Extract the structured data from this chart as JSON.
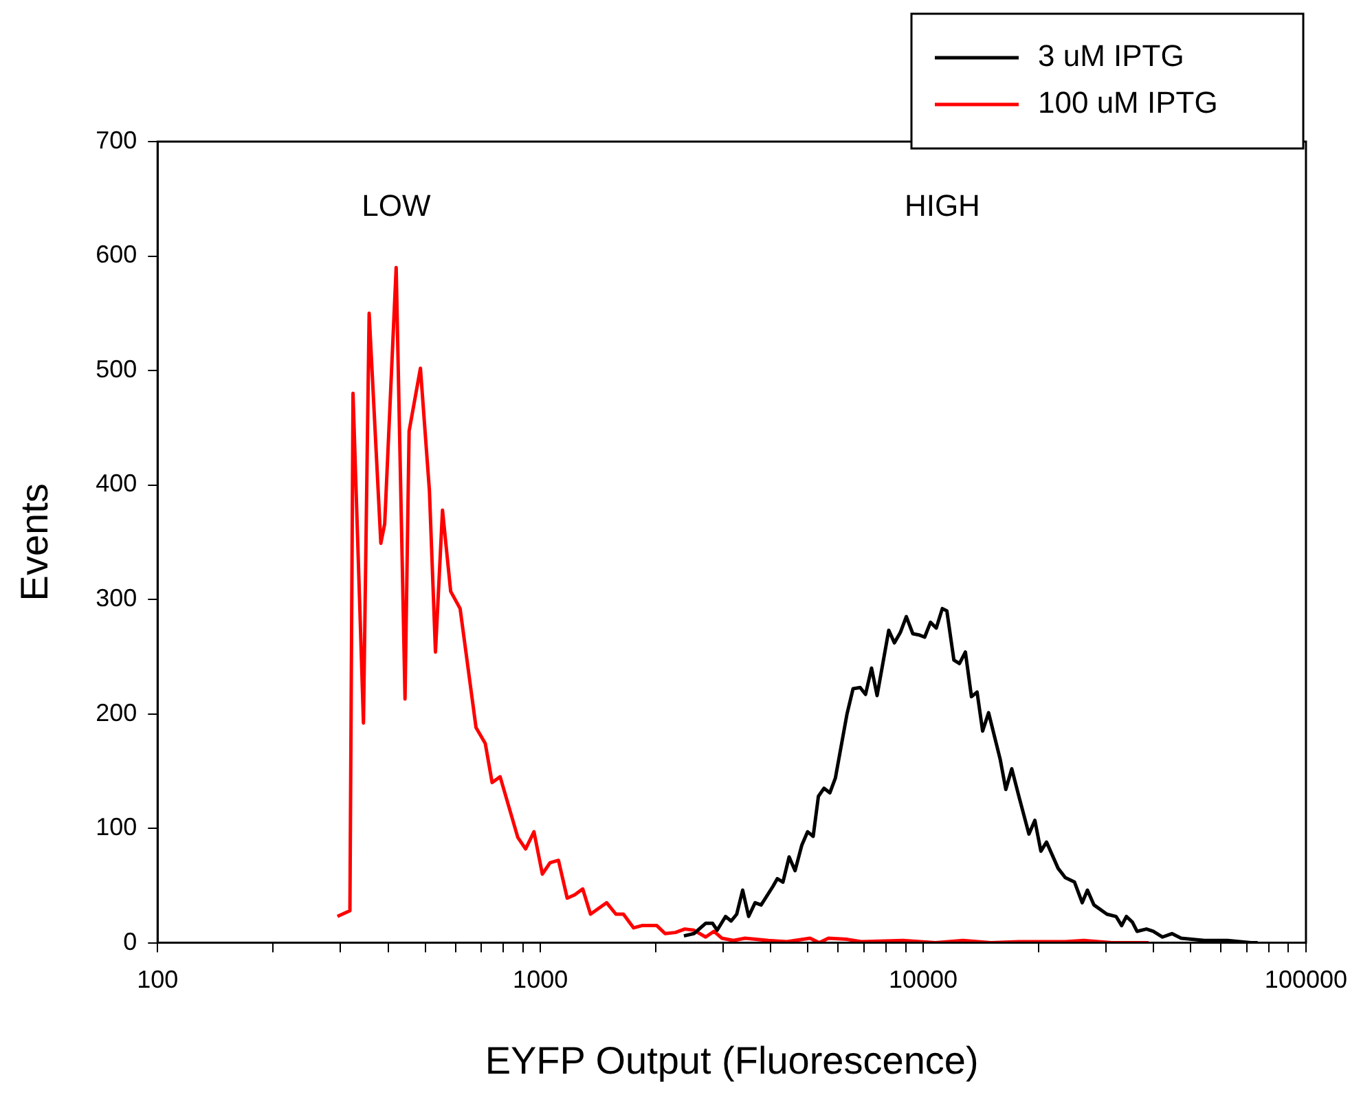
{
  "chart_data": {
    "type": "line",
    "xlabel": "EYFP Output (Fluorescence)",
    "ylabel": "Events",
    "log": "x",
    "xlim": [
      100,
      100000
    ],
    "xticks": [
      100,
      {
        "value": 200,
        "label": null
      },
      {
        "value": 300,
        "label": null
      },
      {
        "value": 400,
        "label": null
      },
      {
        "value": 500,
        "label": null
      },
      {
        "value": 600,
        "label": null
      },
      {
        "value": 700,
        "label": null
      },
      {
        "value": 800,
        "label": null
      },
      {
        "value": 900,
        "label": null
      },
      1000,
      {
        "value": 2000,
        "label": null
      },
      {
        "value": 3000,
        "label": null
      },
      {
        "value": 4000,
        "label": null
      },
      {
        "value": 5000,
        "label": null
      },
      {
        "value": 6000,
        "label": null
      },
      {
        "value": 7000,
        "label": null
      },
      {
        "value": 8000,
        "label": null
      },
      {
        "value": 9000,
        "label": null
      },
      10000,
      {
        "value": 20000,
        "label": null
      },
      {
        "value": 30000,
        "label": null
      },
      {
        "value": 40000,
        "label": null
      },
      {
        "value": 50000,
        "label": null
      },
      {
        "value": 60000,
        "label": null
      },
      {
        "value": 70000,
        "label": null
      },
      {
        "value": 80000,
        "label": null
      },
      {
        "value": 90000,
        "label": null
      },
      100000
    ],
    "ylim": [
      0,
      700
    ],
    "yticks": [
      0,
      100,
      200,
      300,
      400,
      500,
      600,
      700
    ],
    "grid": false,
    "legend": "top right",
    "marker": "none",
    "line_style": "solid",
    "annotations": [
      "LOW",
      "HIGH"
    ],
    "series": [
      {
        "name": "3 uM IPTG",
        "color": "#000000",
        "x": [
          2371,
          2518,
          2702,
          2818,
          2897,
          3047,
          3150,
          3258,
          3376,
          3500,
          3638,
          3773,
          4046,
          4160,
          4302,
          4465,
          4628,
          4816,
          4990,
          5160,
          5325,
          5506,
          5706,
          5898,
          6325,
          6560,
          6844,
          7070,
          7330,
          7580,
          8130,
          8410,
          8715,
          9035,
          9397,
          9745,
          10090,
          10450,
          10820,
          11220,
          11530,
          12030,
          12440,
          12890,
          13370,
          13830,
          14300,
          14820,
          15900,
          16440,
          17040,
          17780,
          18890,
          19580,
          20300,
          21000,
          22520,
          23500,
          24850,
          26030,
          26860,
          27940,
          30200,
          31900,
          33000,
          33950,
          35200,
          36200,
          38300,
          39900,
          42200,
          44650,
          47200,
          54300,
          62400,
          71800,
          74800
        ],
        "values": [
          6,
          8,
          17,
          17,
          11,
          23,
          19,
          25,
          46,
          23,
          35,
          33,
          49,
          56,
          53,
          75,
          63,
          85,
          97,
          93,
          128,
          135,
          131,
          144,
          200,
          222,
          223,
          217,
          240,
          216,
          273,
          262,
          271,
          285,
          270,
          269,
          267,
          280,
          275,
          292,
          290,
          247,
          244,
          254,
          215,
          219,
          185,
          201,
          160,
          134,
          152,
          128,
          95,
          107,
          80,
          88,
          65,
          57,
          53,
          35,
          46,
          33,
          25,
          23,
          15,
          23,
          18,
          10,
          12,
          10,
          5,
          8,
          4,
          2,
          2,
          0,
          0
        ]
      },
      {
        "name": "100 uM IPTG",
        "color": "#ff0000",
        "x": [
          295,
          318,
          324,
          345,
          357,
          383,
          392,
          420,
          443,
          454,
          486,
          513,
          532,
          555,
          583,
          617,
          679,
          718,
          748,
          785,
          873,
          915,
          962,
          1012,
          1060,
          1115,
          1175,
          1230,
          1290,
          1352,
          1490,
          1575,
          1648,
          1752,
          1842,
          2014,
          2118,
          2253,
          2384,
          2518,
          2702,
          2840,
          2978,
          3193,
          3425,
          3939,
          4405,
          5063,
          5350,
          5657,
          6325,
          6890,
          8850,
          10760,
          12710,
          15030,
          17780,
          23500,
          26270,
          31050,
          38800
        ],
        "values": [
          23,
          28,
          480,
          192,
          550,
          349,
          366,
          590,
          213,
          447,
          502,
          395,
          254,
          378,
          307,
          292,
          188,
          174,
          140,
          145,
          92,
          82,
          97,
          60,
          70,
          72,
          39,
          42,
          47,
          25,
          35,
          25,
          25,
          13,
          15,
          15,
          8,
          9,
          12,
          11,
          5,
          10,
          4,
          2,
          4,
          2,
          1,
          4,
          0,
          4,
          3,
          1,
          2,
          0,
          2,
          0,
          1,
          1,
          2,
          0,
          0
        ]
      }
    ]
  }
}
